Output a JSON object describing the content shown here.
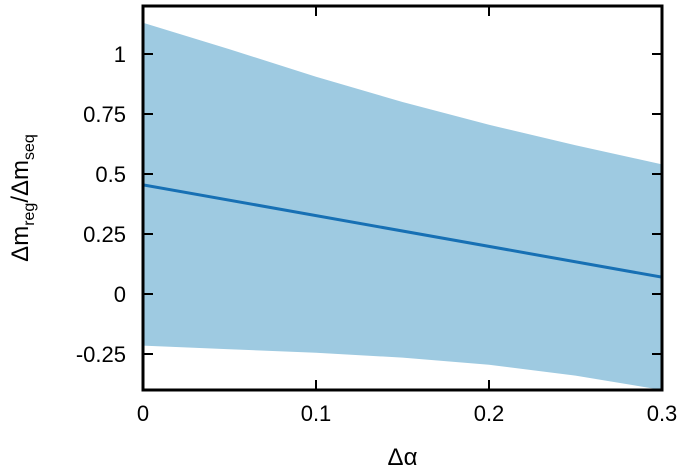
{
  "chart_data": {
    "type": "area",
    "xlabel": "Δα",
    "ylabel": {
      "parts": [
        {
          "text": "Δm",
          "sub": false
        },
        {
          "text": "reg",
          "sub": true
        },
        {
          "text": "/Δm",
          "sub": false
        },
        {
          "text": "seq",
          "sub": true
        }
      ]
    },
    "xlim": [
      0,
      0.3
    ],
    "ylim": [
      -0.4,
      1.2
    ],
    "x_ticks": [
      0,
      0.1,
      0.2,
      0.3
    ],
    "x_tick_labels": [
      "0",
      "0.1",
      "0.2",
      "0.3"
    ],
    "y_ticks": [
      -0.25,
      0,
      0.25,
      0.5,
      0.75,
      1
    ],
    "y_tick_labels": [
      "-0.25",
      "0",
      "0.25",
      "0.5",
      "0.75",
      "1"
    ],
    "series": [
      {
        "kind": "line",
        "x": [
          0,
          0.3
        ],
        "y": [
          0.455,
          0.07
        ]
      },
      {
        "kind": "band",
        "x": [
          0,
          0.05,
          0.1,
          0.15,
          0.2,
          0.25,
          0.3
        ],
        "upper": [
          1.13,
          1.02,
          0.905,
          0.8,
          0.705,
          0.62,
          0.54
        ],
        "lower": [
          -0.215,
          -0.23,
          -0.245,
          -0.265,
          -0.295,
          -0.34,
          -0.4
        ]
      }
    ],
    "colors": {
      "band": "#9ecae1",
      "line": "#1770b4",
      "axes": "#000000"
    },
    "grid": false,
    "legend": "none"
  }
}
